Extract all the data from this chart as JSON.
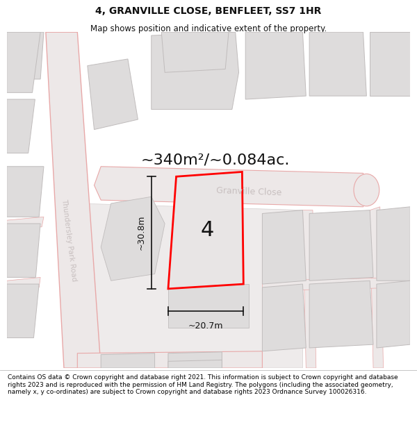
{
  "title": "4, GRANVILLE CLOSE, BENFLEET, SS7 1HR",
  "subtitle": "Map shows position and indicative extent of the property.",
  "area_text": "~340m²/~0.084ac.",
  "width_label": "~20.7m",
  "height_label": "~30.8m",
  "plot_number": "4",
  "road_label_tpr": "Thundersley Park Road",
  "road_label_gc": "Granville Close",
  "footer_text": "Contains OS data © Crown copyright and database right 2021. This information is subject to Crown copyright and database rights 2023 and is reproduced with the permission of HM Land Registry. The polygons (including the associated geometry, namely x, y co-ordinates) are subject to Crown copyright and database rights 2023 Ordnance Survey 100026316.",
  "map_bg": "#f5f2f2",
  "building_fill": "#dedcdc",
  "building_edge": "#c0bcbc",
  "road_fill": "#ede8e8",
  "road_edge": "#e8a8a8",
  "plot_fill": "#e8e5e5",
  "plot_edge": "#ff0000",
  "white": "#ffffff",
  "label_color": "#c8c0c0",
  "dim_color": "#111111"
}
